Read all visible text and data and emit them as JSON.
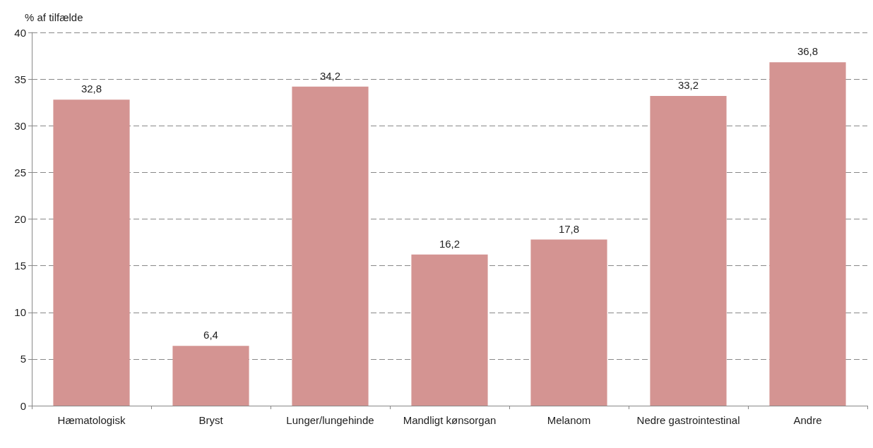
{
  "chart_data": {
    "type": "bar",
    "ylabel": "% af tilfælde",
    "categories": [
      "Hæmatologisk",
      "Bryst",
      "Lunger/lungehinde",
      "Mandligt kønsorgan",
      "Melanom",
      "Nedre gastrointestinal",
      "Andre"
    ],
    "values": [
      32.8,
      6.4,
      34.2,
      16.2,
      17.8,
      33.2,
      36.8
    ],
    "value_labels": [
      "32,8",
      "6,4",
      "34,2",
      "16,2",
      "17,8",
      "33,2",
      "36,8"
    ],
    "color": "#d49492",
    "ylim": [
      0,
      40
    ],
    "yticks": [
      0,
      5,
      10,
      15,
      20,
      25,
      30,
      35,
      40
    ],
    "grid": "y"
  }
}
